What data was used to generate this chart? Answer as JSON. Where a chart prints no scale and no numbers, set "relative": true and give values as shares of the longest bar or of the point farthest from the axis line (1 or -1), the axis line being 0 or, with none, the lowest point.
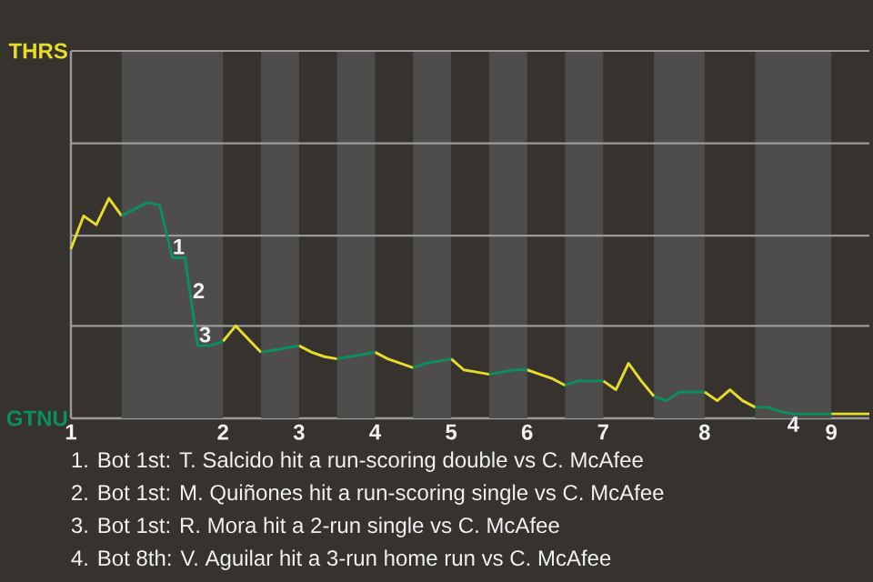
{
  "chart_data": {
    "type": "line",
    "relative": true,
    "categories": [
      "1",
      null,
      null,
      null,
      null,
      null,
      null,
      null,
      null,
      null,
      null,
      null,
      "2",
      null,
      null,
      null,
      null,
      null,
      "3",
      null,
      null,
      null,
      null,
      null,
      "4",
      null,
      null,
      null,
      null,
      null,
      "5",
      null,
      null,
      null,
      null,
      null,
      "6",
      null,
      null,
      null,
      null,
      null,
      "7",
      null,
      null,
      null,
      null,
      null,
      null,
      null,
      "8",
      null,
      null,
      null,
      null,
      null,
      null,
      null,
      null,
      null,
      "9",
      null,
      null,
      null
    ],
    "ref_lines": [
      {
        "axis": "y",
        "value": 0.42,
        "color": "#9a9a9a"
      },
      {
        "axis": "y",
        "value": 0.83,
        "color": "#9a9a9a"
      },
      {
        "axis": "y",
        "value": 1.25,
        "color": "#9a9a9a"
      },
      {
        "axis": "y",
        "value": 1.67,
        "color": "#9a9a9a"
      }
    ],
    "line_style": "solid",
    "legend": "left",
    "series": [
      {
        "name": "THRS",
        "color": "#e8dc2a",
        "values": [
          0.77,
          0.92,
          0.88,
          1,
          0.92,
          null,
          null,
          null,
          null,
          null,
          null,
          null,
          0.35,
          0.42,
          0.36,
          0.3,
          null,
          null,
          0.33,
          0.3,
          0.28,
          0.27,
          null,
          null,
          0.3,
          0.27,
          0.25,
          0.23,
          null,
          null,
          0.27,
          0.22,
          0.21,
          0.2,
          null,
          null,
          0.22,
          0.2,
          0.18,
          0.15,
          null,
          null,
          0.17,
          0.13,
          0.25,
          0.17,
          0.1,
          null,
          null,
          null,
          0.12,
          0.08,
          0.13,
          0.08,
          0.05,
          null,
          null,
          null,
          null,
          null,
          0.02,
          0.02,
          0.02,
          0.02
        ]
      },
      {
        "name": "GTNU",
        "color": "#0a8f5e",
        "values": [
          null,
          null,
          null,
          null,
          0.92,
          0.95,
          0.98,
          0.97,
          0.73,
          0.73,
          0.33,
          0.33,
          0.35,
          null,
          null,
          0.3,
          0.31,
          0.32,
          0.33,
          null,
          null,
          0.27,
          0.28,
          0.29,
          0.3,
          null,
          null,
          0.23,
          0.25,
          0.26,
          0.27,
          null,
          null,
          0.2,
          0.21,
          0.22,
          0.22,
          null,
          null,
          0.15,
          0.17,
          0.17,
          0.17,
          null,
          null,
          null,
          0.1,
          0.08,
          0.12,
          0.12,
          0.12,
          null,
          null,
          null,
          0.05,
          0.05,
          0.03,
          0.02,
          0.02,
          0.02,
          0.02,
          null,
          null,
          null
        ]
      }
    ],
    "annotations": [
      {
        "text": "1",
        "y": 0.78
      },
      {
        "text": "2",
        "y": 0.58
      },
      {
        "text": "3",
        "y": 0.38
      },
      {
        "text": "4",
        "y": 0.02
      },
      "1. Bot 1st: T. Salcido hit a run-scoring double vs C. McAfee",
      "2. Bot 1st: M. Quiñones hit a run-scoring single vs C. McAfee",
      "3. Bot 1st: R. Mora hit a 2-run single vs C. McAfee",
      "4. Bot 8th: V. Aguilar hit a 3-run home run vs C. McAfee"
    ]
  }
}
